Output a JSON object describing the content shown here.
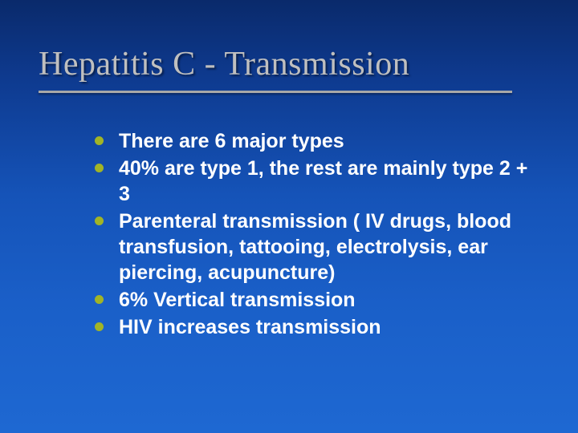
{
  "slide": {
    "background_gradient": [
      "#0a2a6b",
      "#0e3a8f",
      "#1553b8",
      "#1a5fc8",
      "#1e68d2"
    ],
    "title": {
      "text": "Hepatitis C - Transmission",
      "color": "#bfbfbf",
      "font_family": "Times New Roman",
      "font_size_pt": 32,
      "underline_color": "#a8a8a8"
    },
    "bullet_style": {
      "dot_color": "#a1b426",
      "text_color": "#ffffff",
      "font_family": "Arial",
      "font_size_pt": 19,
      "font_weight": "bold"
    },
    "bullets": [
      {
        "text": "There are 6 major types"
      },
      {
        "text": "40% are type 1, the rest are mainly type 2 + 3"
      },
      {
        "text": "Parenteral transmission ( IV drugs, blood transfusion, tattooing, electrolysis, ear piercing, acupuncture)"
      },
      {
        "text": "6% Vertical transmission"
      },
      {
        "text": "HIV increases transmission"
      }
    ]
  }
}
